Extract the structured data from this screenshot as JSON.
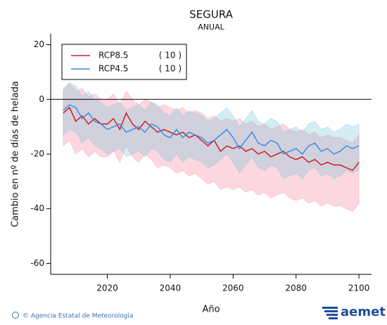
{
  "chart_data": {
    "type": "line",
    "title": "SEGURA",
    "subtitle": "ANUAL",
    "xlabel": "Año",
    "ylabel": "Cambio en nº de días de helada",
    "footer": "© Agencia Estatal de Meteorología",
    "logo": "aemet",
    "xlim": [
      2002,
      2104
    ],
    "xticks": [
      2020,
      2040,
      2060,
      2080,
      2100
    ],
    "ylim": [
      -64,
      24
    ],
    "yticks": [
      -60,
      -40,
      -20,
      0,
      20
    ],
    "hline": 0,
    "legend": "upper left",
    "x": [
      2006,
      2008,
      2010,
      2012,
      2014,
      2016,
      2018,
      2020,
      2022,
      2024,
      2026,
      2028,
      2030,
      2032,
      2034,
      2036,
      2038,
      2040,
      2042,
      2044,
      2046,
      2048,
      2050,
      2052,
      2054,
      2056,
      2058,
      2060,
      2062,
      2064,
      2066,
      2068,
      2070,
      2072,
      2074,
      2076,
      2078,
      2080,
      2082,
      2084,
      2086,
      2088,
      2090,
      2092,
      2094,
      2096,
      2098,
      2100
    ],
    "series": [
      {
        "name": "RCP8.5",
        "models_label": "( 10 )",
        "color": "#cc2020",
        "band_color": "rgba(250,140,165,0.35)",
        "values": [
          -5,
          -3,
          -8,
          -6,
          -9,
          -7,
          -9,
          -9,
          -7,
          -11,
          -5,
          -9,
          -11,
          -8,
          -10,
          -12,
          -11,
          -12,
          -13,
          -12,
          -14,
          -13,
          -15,
          -17,
          -15,
          -19,
          -17,
          -18,
          -17,
          -19,
          -18,
          -20,
          -19,
          -21,
          -20,
          -19,
          -21,
          -22,
          -21,
          -23,
          -22,
          -24,
          -23,
          -24,
          -24,
          -25,
          -26,
          -23
        ],
        "upper": [
          3,
          6,
          3,
          4,
          1,
          2,
          0,
          0,
          2,
          -2,
          3,
          0,
          -2,
          0,
          -1,
          -3,
          -2,
          -3,
          -4,
          -3,
          -5,
          -4,
          -5,
          -7,
          -6,
          -8,
          -7,
          -8,
          -7,
          -9,
          -8,
          -10,
          -9,
          -11,
          -10,
          -9,
          -11,
          -12,
          -11,
          -13,
          -12,
          -14,
          -13,
          -14,
          -14,
          -15,
          -16,
          -13
        ],
        "lower": [
          -17,
          -15,
          -20,
          -18,
          -21,
          -19,
          -21,
          -21,
          -19,
          -23,
          -17,
          -21,
          -23,
          -20,
          -22,
          -25,
          -24,
          -25,
          -27,
          -26,
          -28,
          -27,
          -29,
          -31,
          -30,
          -33,
          -32,
          -33,
          -32,
          -34,
          -33,
          -35,
          -34,
          -36,
          -35,
          -34,
          -36,
          -37,
          -36,
          -38,
          -37,
          -39,
          -38,
          -39,
          -39,
          -40,
          -41,
          -38
        ]
      },
      {
        "name": "RCP4.5",
        "models_label": "( 10 )",
        "color": "#3a8ee0",
        "band_color": "rgba(110,195,215,0.3)",
        "values": [
          -4,
          -2,
          -3,
          -7,
          -5,
          -8,
          -9,
          -11,
          -10,
          -9,
          -12,
          -11,
          -10,
          -12,
          -9,
          -10,
          -13,
          -14,
          -11,
          -14,
          -12,
          -13,
          -14,
          -16,
          -15,
          -13,
          -11,
          -14,
          -18,
          -15,
          -12,
          -16,
          -17,
          -15,
          -16,
          -20,
          -19,
          -18,
          -20,
          -17,
          -16,
          -19,
          -18,
          -20,
          -19,
          -17,
          -18,
          -17
        ],
        "upper": [
          4,
          6,
          5,
          1,
          3,
          0,
          -1,
          -3,
          -2,
          -1,
          -4,
          -3,
          -2,
          -4,
          -1,
          -2,
          -5,
          -6,
          -3,
          -6,
          -4,
          -5,
          -6,
          -8,
          -7,
          -5,
          -3,
          -6,
          -10,
          -7,
          -4,
          -8,
          -9,
          -7,
          -8,
          -12,
          -11,
          -10,
          -12,
          -9,
          -8,
          -11,
          -10,
          -12,
          -11,
          -9,
          -10,
          -9
        ],
        "lower": [
          -13,
          -11,
          -12,
          -16,
          -14,
          -17,
          -18,
          -20,
          -19,
          -18,
          -21,
          -20,
          -19,
          -21,
          -18,
          -19,
          -22,
          -23,
          -20,
          -23,
          -21,
          -22,
          -23,
          -25,
          -24,
          -22,
          -20,
          -23,
          -27,
          -24,
          -21,
          -25,
          -26,
          -24,
          -25,
          -29,
          -28,
          -27,
          -29,
          -26,
          -25,
          -28,
          -27,
          -29,
          -28,
          -26,
          -27,
          -26
        ]
      }
    ]
  }
}
